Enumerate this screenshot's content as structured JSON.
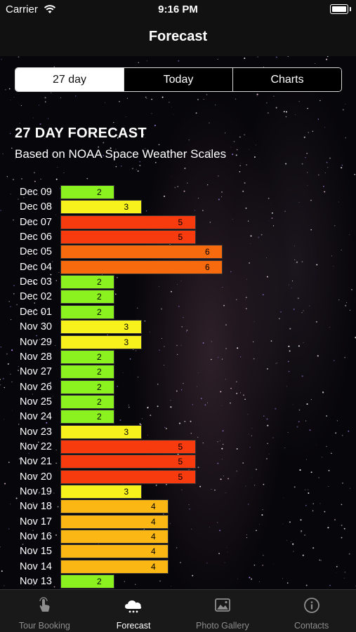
{
  "status_bar": {
    "carrier": "Carrier",
    "time": "9:16 PM"
  },
  "nav": {
    "title": "Forecast"
  },
  "segments": [
    {
      "label": "27 day",
      "selected": true
    },
    {
      "label": "Today",
      "selected": false
    },
    {
      "label": "Charts",
      "selected": false
    }
  ],
  "forecast": {
    "title": "27 DAY FORECAST",
    "subtitle": "Based on NOAA Space Weather Scales"
  },
  "chart_data": {
    "type": "bar",
    "orientation": "horizontal",
    "categories": [
      "Dec 09",
      "Dec 08",
      "Dec 07",
      "Dec 06",
      "Dec 05",
      "Dec 04",
      "Dec 03",
      "Dec 02",
      "Dec 01",
      "Nov 30",
      "Nov 29",
      "Nov 28",
      "Nov 27",
      "Nov 26",
      "Nov 25",
      "Nov 24",
      "Nov 23",
      "Nov 22",
      "Nov 21",
      "Nov 20",
      "Nov 19",
      "Nov 18",
      "Nov 17",
      "Nov 16",
      "Nov 15",
      "Nov 14",
      "Nov 13"
    ],
    "values": [
      2,
      3,
      5,
      5,
      6,
      6,
      2,
      2,
      2,
      3,
      3,
      2,
      2,
      2,
      2,
      2,
      3,
      5,
      5,
      5,
      3,
      4,
      4,
      4,
      4,
      4,
      2
    ],
    "title": "27 DAY FORECAST",
    "xlabel": "",
    "ylabel": "",
    "xlim": [
      0,
      6
    ],
    "grid": false,
    "level_colors": {
      "2": "#8cf21f",
      "3": "#f7f21c",
      "4": "#fbb814",
      "5": "#f73b0e",
      "6": "#f76a0e"
    }
  },
  "tabs": [
    {
      "label": "Tour Booking",
      "icon": "hand-tap-icon",
      "active": false
    },
    {
      "label": "Forecast",
      "icon": "cloud-icon",
      "active": true
    },
    {
      "label": "Photo Gallery",
      "icon": "photo-icon",
      "active": false
    },
    {
      "label": "Contacts",
      "icon": "info-icon",
      "active": false
    }
  ]
}
